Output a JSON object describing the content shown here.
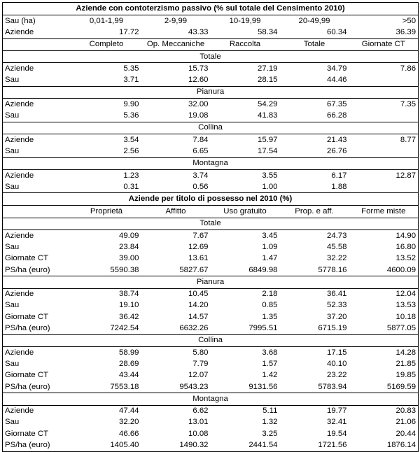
{
  "table1": {
    "title": "Aziende con contoterzismo passivo (% sul totale del Censimento 2010)",
    "sau_label": "Sau (ha)",
    "sau_classes": [
      "0,01-1,99",
      "2-9,99",
      "10-19,99",
      "20-49,99",
      ">50"
    ],
    "aziende_label": "Aziende",
    "aziende_values": [
      "17.72",
      "43.33",
      "58.34",
      "60.34",
      "36.39"
    ],
    "columns": [
      "Completo",
      "Op. Meccaniche",
      "Raccolta",
      "Totale",
      "Giornate CT"
    ],
    "sections": [
      {
        "name": "Totale",
        "rows": [
          {
            "label": "Aziende",
            "values": [
              "5.35",
              "15.73",
              "27.19",
              "34.79",
              "7.86"
            ]
          },
          {
            "label": "Sau",
            "values": [
              "3.71",
              "12.60",
              "28.15",
              "44.46",
              ""
            ]
          }
        ]
      },
      {
        "name": "Pianura",
        "rows": [
          {
            "label": "Aziende",
            "values": [
              "9.90",
              "32.00",
              "54.29",
              "67.35",
              "7.35"
            ]
          },
          {
            "label": "Sau",
            "values": [
              "5.36",
              "19.08",
              "41.83",
              "66.28",
              ""
            ]
          }
        ]
      },
      {
        "name": "Collina",
        "rows": [
          {
            "label": "Aziende",
            "values": [
              "3.54",
              "7.84",
              "15.97",
              "21.43",
              "8.77"
            ]
          },
          {
            "label": "Sau",
            "values": [
              "2.56",
              "6.65",
              "17.54",
              "26.76",
              ""
            ]
          }
        ]
      },
      {
        "name": "Montagna",
        "rows": [
          {
            "label": "Aziende",
            "values": [
              "1.23",
              "3.74",
              "3.55",
              "6.17",
              "12.87"
            ]
          },
          {
            "label": "Sau",
            "values": [
              "0.31",
              "0.56",
              "1.00",
              "1.88",
              ""
            ]
          }
        ]
      }
    ]
  },
  "table2": {
    "title": "Aziende per titolo di possesso nel 2010 (%)",
    "columns": [
      "Proprietà",
      "Affitto",
      "Uso gratuito",
      "Prop. e aff.",
      "Forme miste"
    ],
    "sections": [
      {
        "name": "Totale",
        "rows": [
          {
            "label": "Aziende",
            "values": [
              "49.09",
              "7.67",
              "3.45",
              "24.73",
              "14.90"
            ]
          },
          {
            "label": "Sau",
            "values": [
              "23.84",
              "12.69",
              "1.09",
              "45.58",
              "16.80"
            ]
          },
          {
            "label": "Giornate CT",
            "values": [
              "39.00",
              "13.61",
              "1.47",
              "32.22",
              "13.52"
            ]
          },
          {
            "label": "PS/ha (euro)",
            "values": [
              "5590.38",
              "5827.67",
              "6849.98",
              "5778.16",
              "4600.09"
            ]
          }
        ]
      },
      {
        "name": "Pianura",
        "rows": [
          {
            "label": "Aziende",
            "values": [
              "38.74",
              "10.45",
              "2.18",
              "36.41",
              "12.04"
            ]
          },
          {
            "label": "Sau",
            "values": [
              "19.10",
              "14.20",
              "0.85",
              "52.33",
              "13.53"
            ]
          },
          {
            "label": "Giornate CT",
            "values": [
              "36.42",
              "14.57",
              "1.35",
              "37.20",
              "10.18"
            ]
          },
          {
            "label": "PS/ha (euro)",
            "values": [
              "7242.54",
              "6632.26",
              "7995.51",
              "6715.19",
              "5877.05"
            ]
          }
        ]
      },
      {
        "name": "Collina",
        "rows": [
          {
            "label": "Aziende",
            "values": [
              "58.99",
              "5.80",
              "3.68",
              "17.15",
              "14.28"
            ]
          },
          {
            "label": "Sau",
            "values": [
              "28.69",
              "7.79",
              "1.57",
              "40.10",
              "21.85"
            ]
          },
          {
            "label": "Giornate CT",
            "values": [
              "43.44",
              "12.07",
              "1.42",
              "23.22",
              "19.85"
            ]
          },
          {
            "label": "PS/ha (euro)",
            "values": [
              "7553.18",
              "9543.23",
              "9131.56",
              "5783.94",
              "5169.59"
            ]
          }
        ]
      },
      {
        "name": "Montagna",
        "rows": [
          {
            "label": "Aziende",
            "values": [
              "47.44",
              "6.62",
              "5.11",
              "19.77",
              "20.83"
            ]
          },
          {
            "label": "Sau",
            "values": [
              "32.20",
              "13.01",
              "1.32",
              "32.41",
              "21.06"
            ]
          },
          {
            "label": "Giornate CT",
            "values": [
              "46.66",
              "10.08",
              "3.25",
              "19.54",
              "20.44"
            ]
          },
          {
            "label": "PS/ha (euro)",
            "values": [
              "1405.40",
              "1490.32",
              "2441.54",
              "1721.56",
              "1876.14"
            ]
          }
        ]
      }
    ]
  }
}
